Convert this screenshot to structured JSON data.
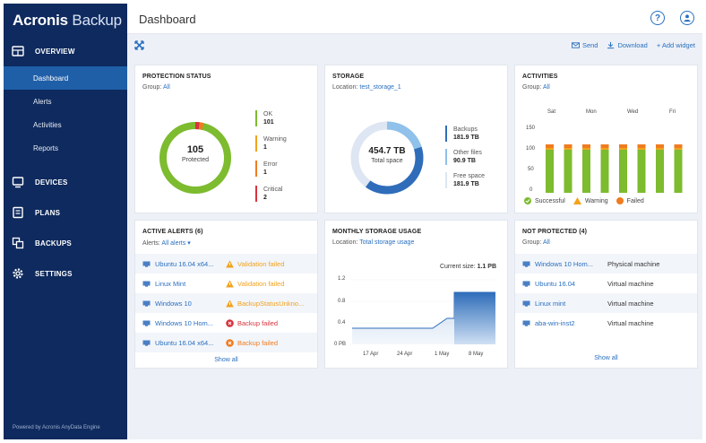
{
  "app": {
    "brand_bold": "Acronis",
    "brand_light": " Backup",
    "powered_by": "Powered by Acronis AnyData Engine"
  },
  "sidebar": {
    "sections": [
      {
        "label": "OVERVIEW",
        "icon": "dashboard-icon"
      },
      {
        "label": "DEVICES",
        "icon": "monitor-icon"
      },
      {
        "label": "PLANS",
        "icon": "plans-icon"
      },
      {
        "label": "BACKUPS",
        "icon": "backups-icon"
      },
      {
        "label": "SETTINGS",
        "icon": "gear-icon"
      }
    ],
    "overview_items": [
      "Dashboard",
      "Alerts",
      "Activities",
      "Reports"
    ],
    "active_item": "Dashboard"
  },
  "header": {
    "title": "Dashboard",
    "help_glyph": "?",
    "colors": {
      "accent": "#2a6fbf",
      "sidebar": "#0e2a5e",
      "active": "#1f5fa8"
    }
  },
  "toolbar": {
    "send": "Send",
    "download": "Download",
    "add_widget": "+ Add widget"
  },
  "protection": {
    "title": "PROTECTION STATUS",
    "group_label": "Group:",
    "group_value": "All",
    "total": "105",
    "total_label": "Protected",
    "legend": [
      {
        "label": "OK",
        "value": "101",
        "color": "#7dbb2f"
      },
      {
        "label": "Warning",
        "value": "1",
        "color": "#f3a21c"
      },
      {
        "label": "Error",
        "value": "1",
        "color": "#ef7c20"
      },
      {
        "label": "Critical",
        "value": "2",
        "color": "#d9333d"
      }
    ]
  },
  "storage": {
    "title": "STORAGE",
    "location_label": "Location:",
    "location_value": "test_storage_1",
    "total": "454.7 TB",
    "total_label": "Total space",
    "legend": [
      {
        "label": "Backups",
        "value": "181.9 TB",
        "color": "#2f6dba"
      },
      {
        "label": "Other files",
        "value": "90.9 TB",
        "color": "#8fc1ea"
      },
      {
        "label": "Free space",
        "value": "181.9 TB",
        "color": "#dde6f2"
      }
    ]
  },
  "activities": {
    "title": "ACTIVITIES",
    "group_label": "Group:",
    "group_value": "All",
    "y_ticks": [
      "150",
      "100",
      "50",
      "0"
    ],
    "days": [
      "Sat",
      "Mon",
      "Wed",
      "Fri"
    ],
    "legend": [
      {
        "label": "Successful",
        "color": "#7dbb2f",
        "icon": "check-circle-icon"
      },
      {
        "label": "Warning",
        "color": "#f3a21c",
        "icon": "warning-triangle-icon"
      },
      {
        "label": "Failed",
        "color": "#ef7c20",
        "icon": "alert-circle-icon"
      }
    ]
  },
  "alerts": {
    "title": "ACTIVE ALERTS (6)",
    "filter_label": "Alerts:",
    "filter_value": "All alerts",
    "rows": [
      {
        "name": "Ubuntu 16.04 x64...",
        "status": "Validation failed",
        "icon": "warning-triangle-icon",
        "color": "#f3a21c"
      },
      {
        "name": "Linux Mint",
        "status": "Validation failed",
        "icon": "warning-triangle-icon",
        "color": "#f3a21c"
      },
      {
        "name": "Windows 10",
        "status": "BackupStatusUnkno...",
        "icon": "warning-triangle-icon",
        "color": "#f3a21c"
      },
      {
        "name": "Windows 10 Hom...",
        "status": "Backup failed",
        "icon": "error-circle-icon",
        "color": "#d9333d"
      },
      {
        "name": "Ubuntu 16.04 x64...",
        "status": "Backup failed",
        "icon": "error-circle-icon",
        "color": "#ef7c20"
      }
    ],
    "show_all": "Show all"
  },
  "monthly": {
    "title": "MONTHLY STORAGE USAGE",
    "location_label": "Location:",
    "location_value": "Total storage usage",
    "current_label": "Current size:",
    "current_value": "1.1 PB",
    "y_ticks": [
      "1.2",
      "0.8",
      "0.4",
      "0 PB"
    ],
    "x_ticks": [
      "17 Apr",
      "24 Apr",
      "1 May",
      "8 May"
    ]
  },
  "not_protected": {
    "title": "NOT PROTECTED (4)",
    "group_label": "Group:",
    "group_value": "All",
    "rows": [
      {
        "name": "Windows 10 Hom...",
        "type": "Physical machine"
      },
      {
        "name": "Ubuntu 16.04",
        "type": "Virtual machine"
      },
      {
        "name": "Linux mint",
        "type": "Virtual machine"
      },
      {
        "name": "aba-win-inst2",
        "type": "Virtual machine"
      }
    ],
    "show_all": "Show all"
  }
}
